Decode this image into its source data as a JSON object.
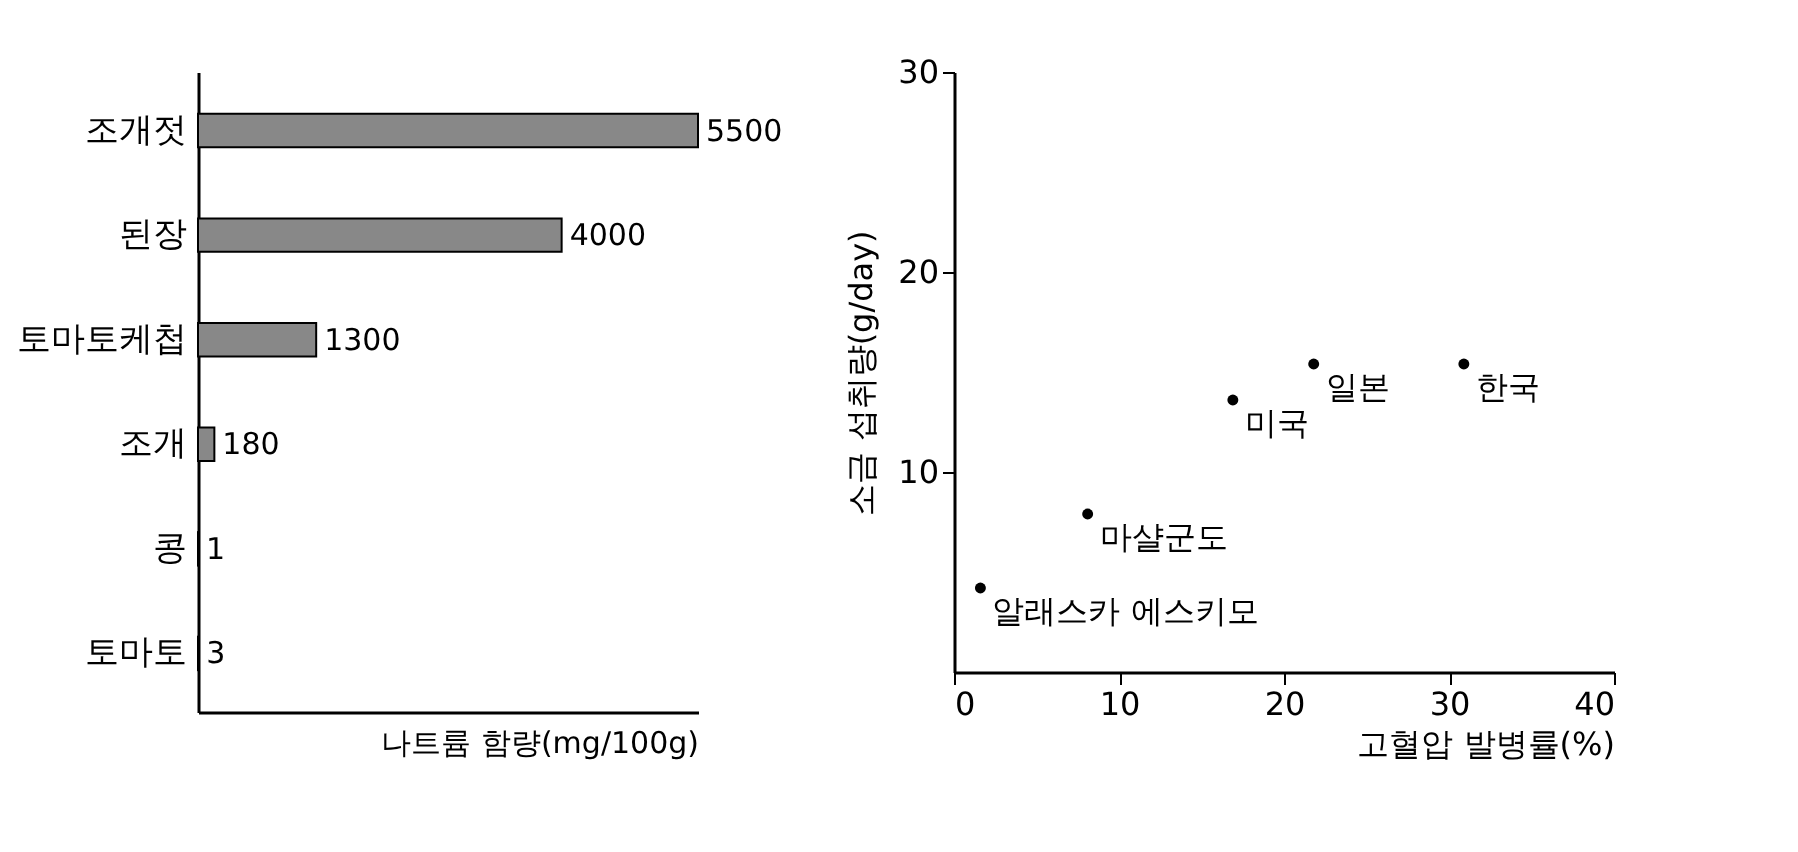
{
  "chart_data": [
    {
      "type": "bar",
      "orientation": "horizontal",
      "categories": [
        "조개젓",
        "된장",
        "토마토케첩",
        "조개",
        "콩",
        "토마토"
      ],
      "values": [
        5500,
        4000,
        1300,
        180,
        1,
        3
      ],
      "color": "#888888",
      "data_labels": true,
      "xlabel": "나트륨 함량(mg/100g)",
      "tick_labels": "y"
    },
    {
      "type": "scatter",
      "x": [
        1.6,
        8.1,
        16.9,
        21.8,
        30.9
      ],
      "values": [
        4.2,
        7.9,
        13.6,
        15.4,
        15.4
      ],
      "color": "#000000",
      "marker": "circle",
      "xlim": [
        0,
        40
      ],
      "ylim": [
        0,
        30
      ],
      "xticks": [
        0,
        10,
        20,
        30,
        40
      ],
      "yticks": [
        10,
        20,
        30
      ],
      "xlabel": "고혈압 발병률(%)",
      "ylabel": "소금 섭취량(g/day)",
      "annotations": [
        {
          "text": "알래스카 에스키모",
          "x": 1.6,
          "y": 4.2
        },
        {
          "text": "마샬군도",
          "x": 8.1,
          "y": 7.9
        },
        {
          "text": "미국",
          "x": 16.9,
          "y": 13.6
        },
        {
          "text": "일본",
          "x": 21.8,
          "y": 15.4
        },
        {
          "text": "한국",
          "x": 30.9,
          "y": 15.4
        }
      ]
    }
  ]
}
